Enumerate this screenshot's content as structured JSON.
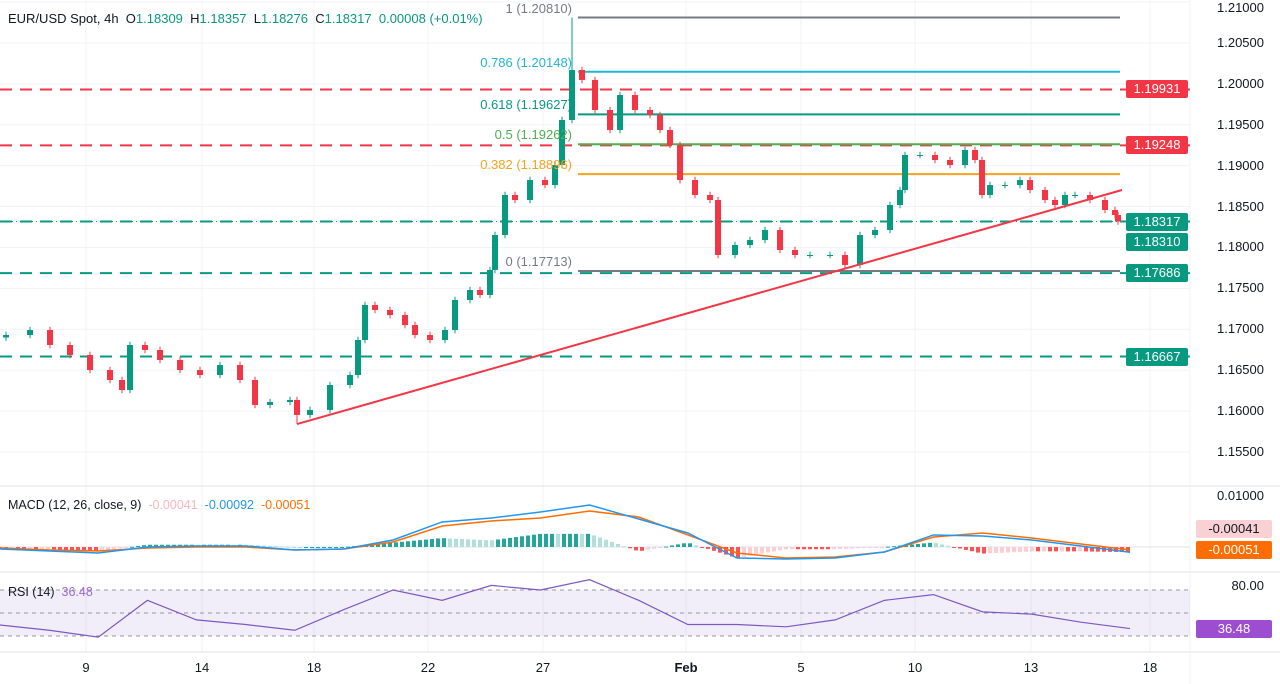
{
  "header": {
    "symbol": "EUR/USD Spot, 4h",
    "o_label": "O",
    "o": "1.18309",
    "h_label": "H",
    "h": "1.18357",
    "l_label": "L",
    "l": "1.18276",
    "c_label": "C",
    "c": "1.18317",
    "change": "0.00008 (+0.01%)"
  },
  "colors": {
    "up": "#089981",
    "down": "#f23645",
    "macd": "#2196f3",
    "signal": "#ff6d00",
    "rsi": "#7e57c2",
    "trendline": "#f23645"
  },
  "chart_data": [
    {
      "type": "candlestick",
      "title": "EUR/USD Spot, 4h",
      "ylim": [
        1.155,
        1.21
      ],
      "y_ticks": [
        "1.21000",
        "1.20500",
        "1.20000",
        "1.19500",
        "1.19000",
        "1.18500",
        "1.18000",
        "1.17500",
        "1.17000",
        "1.16500",
        "1.16000",
        "1.15500"
      ],
      "x_ticks": [
        "9",
        "14",
        "18",
        "22",
        "27",
        "Feb",
        "5",
        "10",
        "13",
        "18"
      ],
      "first_open": 1.169,
      "closes": [
        1.1693,
        1.16991,
        1.16808,
        1.16686,
        1.16502,
        1.1638,
        1.16258,
        1.16808,
        1.16747,
        1.16625,
        1.16502,
        1.16441,
        1.16563,
        1.1638,
        1.16075,
        1.16111,
        1.16136,
        1.15953,
        1.16014,
        1.16319,
        1.16441,
        1.16869,
        1.17297,
        1.17236,
        1.17174,
        1.17052,
        1.1693,
        1.16869,
        1.16991,
        1.17358,
        1.1748,
        1.17419,
        1.17725,
        1.18152,
        1.18641,
        1.1858,
        1.18824,
        1.18763,
        1.19008,
        1.19558,
        1.20169,
        1.20047,
        1.1968,
        1.19436,
        1.19863,
        1.1968,
        1.19619,
        1.19436,
        1.19252,
        1.18824,
        1.18641,
        1.1858,
        1.17908,
        1.1803,
        1.18091,
        1.18213,
        1.17969,
        1.17908,
        1.17908,
        1.17908,
        1.17786,
        1.18152,
        1.18213,
        1.18519,
        1.18702,
        1.1913,
        1.1913,
        1.19069,
        1.19008,
        1.19191,
        1.19069,
        1.18641,
        1.18763,
        1.18763,
        1.18824,
        1.18702,
        1.1858,
        1.18519,
        1.18641,
        1.18641,
        1.1858,
        1.18458,
        1.18397,
        1.18317
      ],
      "extreme_high": 1.2081,
      "extreme_low": 1.15842,
      "horizontal_levels": [
        {
          "price": 1.19931,
          "label": "1.19931",
          "color": "#f23645"
        },
        {
          "price": 1.19248,
          "label": "1.19248",
          "color": "#f23645"
        },
        {
          "price": 1.18317,
          "label": "1.18317",
          "color": "#089981"
        },
        {
          "price": 1.1831,
          "label": "1.18310",
          "color": "#089981"
        },
        {
          "price": 1.17686,
          "label": "1.17686",
          "color": "#089981"
        },
        {
          "price": 1.16667,
          "label": "1.16667",
          "color": "#089981"
        }
      ],
      "fibonacci": [
        {
          "label": "1 (1.20810)",
          "price": 1.2081,
          "color": "#787b86"
        },
        {
          "label": "0.786 (1.20148)",
          "price": 1.20148,
          "color": "#22b5d0"
        },
        {
          "label": "0.618 (1.19627)",
          "price": 1.19627,
          "color": "#089981"
        },
        {
          "label": "0.5 (1.19262)",
          "price": 1.19262,
          "color": "#4caf50"
        },
        {
          "label": "0.382 (1.18896)",
          "price": 1.18896,
          "color": "#f7a21b"
        },
        {
          "label": "0 (1.17713)",
          "price": 1.17713,
          "color": "#787b86"
        }
      ],
      "trendline": {
        "start_price": 1.15842,
        "end_price": 1.18702
      }
    },
    {
      "type": "line",
      "title": "MACD (12, 26, close, 9)",
      "legend_values": {
        "histogram": "-0.00041",
        "macd": "-0.00092",
        "signal": "-0.00051"
      },
      "axis_top_label": "0.01000",
      "macd": [
        -0.00035,
        -0.0007,
        -0.00105,
        0,
        0.00018,
        0.00018,
        -0.00053,
        -0.00035,
        0.00123,
        0.00439,
        0.00509,
        0.00614,
        0.00737,
        0.00491,
        0.00246,
        -0.00193,
        -0.00211,
        -0.00193,
        -0.00088,
        0.00211,
        0.00193,
        0.00123,
        0.00018,
        -0.00092
      ],
      "signal": [
        -0.00018,
        -0.00053,
        -0.0007,
        -0.00018,
        0,
        0,
        -0.00053,
        -0.00035,
        0.00088,
        0.00368,
        0.00456,
        0.00509,
        0.00632,
        0.00526,
        0.00211,
        -0.00105,
        -0.00193,
        -0.00175,
        -0.00088,
        0.00175,
        0.00246,
        0.00158,
        0.00053,
        -0.00051
      ]
    },
    {
      "type": "line",
      "title": "RSI (14)",
      "legend_value": "36.48",
      "axis_top_label": "80.00",
      "levels": [
        70,
        50,
        30
      ],
      "values": [
        39.6,
        35,
        29,
        61,
        44,
        40,
        35,
        53,
        70,
        61,
        74,
        70,
        79,
        61,
        40,
        40,
        38,
        44,
        61,
        66,
        51,
        49,
        42,
        36.48
      ]
    }
  ]
}
